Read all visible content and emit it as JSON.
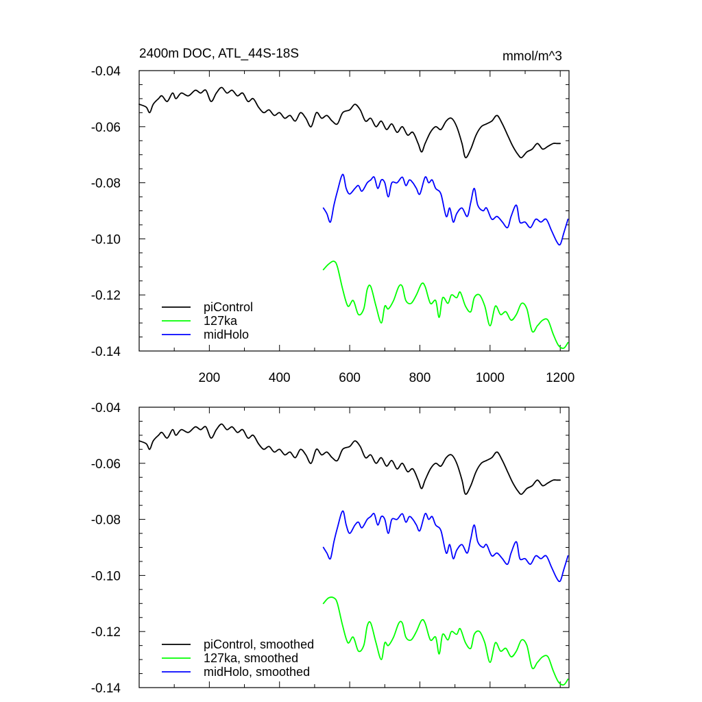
{
  "chart_data": [
    {
      "type": "line",
      "title": "2400m DOC, ATL_44S-18S",
      "units": "mmol/m^3",
      "xlim": [
        0,
        1225
      ],
      "ylim": [
        -0.14,
        -0.04
      ],
      "xticks": [
        200,
        400,
        600,
        800,
        1000,
        1200
      ],
      "xtick_labels": [
        "200",
        "400",
        "600",
        "800",
        "1000",
        "1200"
      ],
      "yticks": [
        -0.04,
        -0.06,
        -0.08,
        -0.1,
        -0.12,
        -0.14
      ],
      "ytick_labels": [
        "-0.04",
        "-0.06",
        "-0.08",
        "-0.10",
        "-0.12",
        "-0.14"
      ],
      "legend_position": "bottom-left",
      "series": [
        {
          "name": "piControl",
          "color": "#000000",
          "x": [
            0,
            20,
            30,
            40,
            55,
            65,
            80,
            95,
            105,
            120,
            140,
            160,
            175,
            190,
            205,
            220,
            235,
            250,
            265,
            280,
            295,
            310,
            325,
            340,
            355,
            370,
            385,
            400,
            415,
            430,
            445,
            460,
            475,
            490,
            505,
            520,
            535,
            550,
            565,
            580,
            600,
            615,
            630,
            645,
            660,
            675,
            690,
            705,
            720,
            735,
            750,
            765,
            780,
            795,
            805,
            815,
            830,
            845,
            860,
            875,
            890,
            905,
            920,
            930,
            945,
            960,
            975,
            990,
            1005,
            1020,
            1035,
            1050,
            1065,
            1080,
            1090,
            1105,
            1120,
            1135,
            1150,
            1165,
            1180,
            1190,
            1200
          ],
          "y": [
            -0.052,
            -0.053,
            -0.055,
            -0.052,
            -0.05,
            -0.049,
            -0.051,
            -0.048,
            -0.05,
            -0.048,
            -0.049,
            -0.047,
            -0.048,
            -0.047,
            -0.051,
            -0.048,
            -0.046,
            -0.048,
            -0.047,
            -0.049,
            -0.048,
            -0.051,
            -0.05,
            -0.053,
            -0.055,
            -0.054,
            -0.056,
            -0.055,
            -0.057,
            -0.056,
            -0.058,
            -0.055,
            -0.057,
            -0.06,
            -0.055,
            -0.057,
            -0.056,
            -0.058,
            -0.059,
            -0.055,
            -0.054,
            -0.052,
            -0.054,
            -0.058,
            -0.057,
            -0.06,
            -0.058,
            -0.061,
            -0.059,
            -0.062,
            -0.06,
            -0.063,
            -0.062,
            -0.066,
            -0.069,
            -0.066,
            -0.062,
            -0.06,
            -0.061,
            -0.058,
            -0.057,
            -0.06,
            -0.066,
            -0.071,
            -0.068,
            -0.063,
            -0.06,
            -0.059,
            -0.058,
            -0.056,
            -0.059,
            -0.063,
            -0.067,
            -0.07,
            -0.071,
            -0.069,
            -0.068,
            -0.066,
            -0.068,
            -0.067,
            -0.066,
            -0.066,
            -0.066
          ]
        },
        {
          "name": "127ka",
          "color": "#00ff00",
          "x": [
            525,
            540,
            555,
            565,
            580,
            595,
            610,
            625,
            640,
            650,
            660,
            675,
            690,
            700,
            710,
            725,
            740,
            750,
            760,
            775,
            790,
            805,
            815,
            830,
            845,
            855,
            865,
            880,
            890,
            905,
            915,
            930,
            945,
            955,
            970,
            985,
            1000,
            1015,
            1030,
            1045,
            1060,
            1075,
            1090,
            1105,
            1120,
            1135,
            1150,
            1165,
            1180,
            1195,
            1210,
            1222
          ],
          "y": [
            -0.111,
            -0.109,
            -0.108,
            -0.11,
            -0.118,
            -0.124,
            -0.122,
            -0.127,
            -0.125,
            -0.118,
            -0.117,
            -0.124,
            -0.13,
            -0.124,
            -0.125,
            -0.122,
            -0.117,
            -0.117,
            -0.122,
            -0.123,
            -0.12,
            -0.116,
            -0.117,
            -0.123,
            -0.122,
            -0.128,
            -0.121,
            -0.123,
            -0.12,
            -0.121,
            -0.119,
            -0.124,
            -0.126,
            -0.121,
            -0.12,
            -0.124,
            -0.131,
            -0.124,
            -0.127,
            -0.126,
            -0.129,
            -0.127,
            -0.123,
            -0.125,
            -0.133,
            -0.131,
            -0.129,
            -0.129,
            -0.134,
            -0.138,
            -0.139,
            -0.137
          ]
        },
        {
          "name": "midHolo",
          "color": "#0000ff",
          "x": [
            525,
            535,
            545,
            555,
            565,
            580,
            590,
            600,
            615,
            625,
            635,
            650,
            660,
            670,
            680,
            690,
            700,
            710,
            720,
            735,
            750,
            760,
            770,
            780,
            790,
            800,
            815,
            825,
            835,
            845,
            860,
            875,
            885,
            895,
            905,
            920,
            935,
            945,
            955,
            965,
            980,
            990,
            1005,
            1020,
            1035,
            1050,
            1060,
            1075,
            1085,
            1100,
            1115,
            1130,
            1145,
            1160,
            1175,
            1190,
            1200,
            1210,
            1222
          ],
          "y": [
            -0.089,
            -0.091,
            -0.094,
            -0.088,
            -0.083,
            -0.077,
            -0.082,
            -0.084,
            -0.082,
            -0.081,
            -0.083,
            -0.08,
            -0.079,
            -0.078,
            -0.082,
            -0.079,
            -0.08,
            -0.085,
            -0.08,
            -0.08,
            -0.078,
            -0.081,
            -0.079,
            -0.08,
            -0.082,
            -0.084,
            -0.078,
            -0.08,
            -0.079,
            -0.082,
            -0.084,
            -0.092,
            -0.089,
            -0.094,
            -0.091,
            -0.089,
            -0.092,
            -0.087,
            -0.082,
            -0.088,
            -0.09,
            -0.089,
            -0.093,
            -0.092,
            -0.094,
            -0.096,
            -0.092,
            -0.088,
            -0.094,
            -0.094,
            -0.096,
            -0.093,
            -0.094,
            -0.093,
            -0.097,
            -0.101,
            -0.102,
            -0.098,
            -0.093
          ]
        }
      ]
    },
    {
      "type": "line",
      "title": "",
      "xlim": [
        0,
        1225
      ],
      "ylim": [
        -0.14,
        -0.04
      ],
      "xticks": [
        200,
        400,
        600,
        800,
        1000,
        1200
      ],
      "yticks": [
        -0.04,
        -0.06,
        -0.08,
        -0.1,
        -0.12,
        -0.14
      ],
      "ytick_labels": [
        "-0.04",
        "-0.06",
        "-0.08",
        "-0.10",
        "-0.12",
        "-0.14"
      ],
      "legend_position": "bottom-left",
      "series": [
        {
          "name": "piControl, smoothed",
          "color": "#000000",
          "x": [
            0,
            20,
            30,
            40,
            55,
            65,
            80,
            95,
            105,
            120,
            140,
            160,
            175,
            190,
            205,
            220,
            235,
            250,
            265,
            280,
            295,
            310,
            325,
            340,
            355,
            370,
            385,
            400,
            415,
            430,
            445,
            460,
            475,
            490,
            505,
            520,
            535,
            550,
            565,
            580,
            600,
            615,
            630,
            645,
            660,
            675,
            690,
            705,
            720,
            735,
            750,
            765,
            780,
            795,
            805,
            815,
            830,
            845,
            860,
            875,
            890,
            905,
            920,
            930,
            945,
            960,
            975,
            990,
            1005,
            1020,
            1035,
            1050,
            1065,
            1080,
            1090,
            1105,
            1120,
            1135,
            1150,
            1165,
            1180,
            1190,
            1200
          ],
          "y": [
            -0.052,
            -0.053,
            -0.055,
            -0.052,
            -0.05,
            -0.049,
            -0.051,
            -0.048,
            -0.05,
            -0.048,
            -0.049,
            -0.047,
            -0.048,
            -0.047,
            -0.051,
            -0.048,
            -0.046,
            -0.048,
            -0.047,
            -0.049,
            -0.048,
            -0.051,
            -0.05,
            -0.053,
            -0.055,
            -0.054,
            -0.056,
            -0.055,
            -0.057,
            -0.056,
            -0.058,
            -0.055,
            -0.057,
            -0.06,
            -0.055,
            -0.057,
            -0.056,
            -0.058,
            -0.059,
            -0.055,
            -0.054,
            -0.052,
            -0.054,
            -0.058,
            -0.057,
            -0.06,
            -0.058,
            -0.061,
            -0.059,
            -0.062,
            -0.06,
            -0.063,
            -0.062,
            -0.066,
            -0.069,
            -0.066,
            -0.062,
            -0.06,
            -0.061,
            -0.058,
            -0.057,
            -0.06,
            -0.066,
            -0.071,
            -0.068,
            -0.063,
            -0.06,
            -0.059,
            -0.058,
            -0.056,
            -0.059,
            -0.063,
            -0.067,
            -0.07,
            -0.071,
            -0.069,
            -0.068,
            -0.066,
            -0.068,
            -0.067,
            -0.066,
            -0.066,
            -0.066
          ]
        },
        {
          "name": "127ka, smoothed",
          "color": "#00ff00",
          "x": [
            525,
            540,
            555,
            565,
            580,
            595,
            610,
            625,
            640,
            650,
            660,
            675,
            690,
            700,
            710,
            725,
            740,
            750,
            760,
            775,
            790,
            805,
            815,
            830,
            845,
            855,
            865,
            880,
            890,
            905,
            915,
            930,
            945,
            955,
            970,
            985,
            1000,
            1015,
            1030,
            1045,
            1060,
            1075,
            1090,
            1105,
            1120,
            1135,
            1150,
            1165,
            1180,
            1195,
            1210,
            1222
          ],
          "y": [
            -0.11,
            -0.108,
            -0.108,
            -0.11,
            -0.118,
            -0.124,
            -0.122,
            -0.127,
            -0.125,
            -0.118,
            -0.117,
            -0.124,
            -0.13,
            -0.124,
            -0.125,
            -0.122,
            -0.117,
            -0.117,
            -0.122,
            -0.123,
            -0.12,
            -0.116,
            -0.117,
            -0.123,
            -0.122,
            -0.128,
            -0.121,
            -0.123,
            -0.12,
            -0.121,
            -0.119,
            -0.124,
            -0.126,
            -0.121,
            -0.12,
            -0.124,
            -0.131,
            -0.124,
            -0.127,
            -0.126,
            -0.129,
            -0.127,
            -0.123,
            -0.125,
            -0.133,
            -0.131,
            -0.129,
            -0.129,
            -0.134,
            -0.138,
            -0.139,
            -0.137
          ]
        },
        {
          "name": "midHolo, smoothed",
          "color": "#0000ff",
          "x": [
            525,
            535,
            545,
            555,
            565,
            580,
            590,
            600,
            615,
            625,
            635,
            650,
            660,
            670,
            680,
            690,
            700,
            710,
            720,
            735,
            750,
            760,
            770,
            780,
            790,
            800,
            815,
            825,
            835,
            845,
            860,
            875,
            885,
            895,
            905,
            920,
            935,
            945,
            955,
            965,
            980,
            990,
            1005,
            1020,
            1035,
            1050,
            1060,
            1075,
            1085,
            1100,
            1115,
            1130,
            1145,
            1160,
            1175,
            1190,
            1200,
            1210,
            1222
          ],
          "y": [
            -0.09,
            -0.092,
            -0.094,
            -0.088,
            -0.083,
            -0.077,
            -0.082,
            -0.085,
            -0.082,
            -0.081,
            -0.083,
            -0.08,
            -0.079,
            -0.078,
            -0.082,
            -0.079,
            -0.08,
            -0.085,
            -0.08,
            -0.08,
            -0.078,
            -0.081,
            -0.079,
            -0.08,
            -0.082,
            -0.084,
            -0.078,
            -0.08,
            -0.079,
            -0.082,
            -0.084,
            -0.092,
            -0.089,
            -0.094,
            -0.091,
            -0.089,
            -0.092,
            -0.087,
            -0.082,
            -0.088,
            -0.09,
            -0.089,
            -0.093,
            -0.092,
            -0.094,
            -0.096,
            -0.092,
            -0.088,
            -0.094,
            -0.094,
            -0.096,
            -0.093,
            -0.094,
            -0.093,
            -0.097,
            -0.101,
            -0.102,
            -0.098,
            -0.093
          ]
        }
      ]
    }
  ]
}
